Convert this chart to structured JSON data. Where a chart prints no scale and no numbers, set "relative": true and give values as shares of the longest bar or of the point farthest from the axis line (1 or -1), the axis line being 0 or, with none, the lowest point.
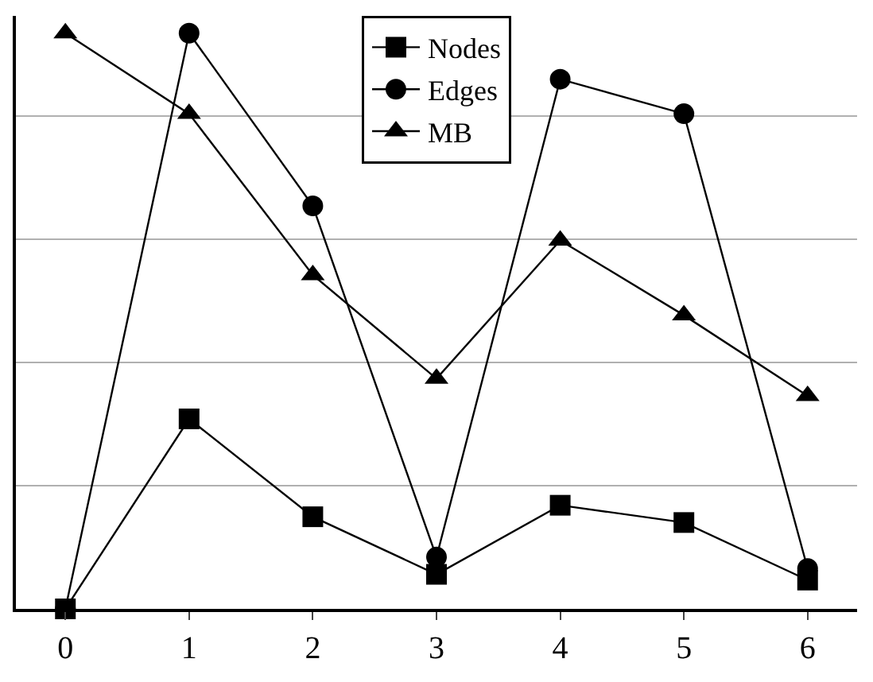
{
  "chart_data": {
    "type": "line",
    "relative": true,
    "x": [
      0,
      1,
      2,
      3,
      4,
      5,
      6
    ],
    "xlim": [
      -0.4,
      6.4
    ],
    "xticks": [
      0,
      1,
      2,
      3,
      4,
      5,
      6
    ],
    "grid": "y",
    "legend": "top",
    "line_style": "solid",
    "series": [
      {
        "name": "Nodes",
        "color": "#000000",
        "marker": "square",
        "values": [
          0,
          0.33,
          0.16,
          0.06,
          0.18,
          0.15,
          0.05
        ]
      },
      {
        "name": "Edges",
        "color": "#000000",
        "marker": "circle",
        "values": [
          0,
          1,
          0.7,
          0.09,
          0.92,
          0.86,
          0.07
        ]
      },
      {
        "name": "MB",
        "color": "#000000",
        "marker": "triangle",
        "values": [
          1,
          0.86,
          0.58,
          0.4,
          0.64,
          0.51,
          0.37
        ]
      }
    ]
  }
}
